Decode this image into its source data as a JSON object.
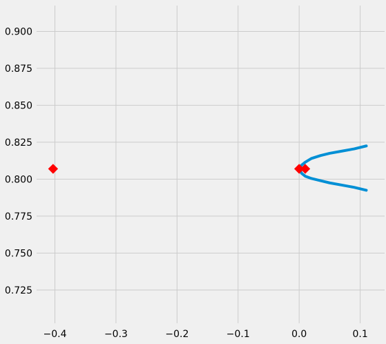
{
  "chart_data": {
    "type": "scatter",
    "title": "",
    "xlabel": "",
    "ylabel": "",
    "xlim": [
      -0.43,
      0.14
    ],
    "ylim": [
      0.7025,
      0.9175
    ],
    "grid": true,
    "xticks": [
      -0.4,
      -0.3,
      -0.2,
      -0.1,
      0.0,
      0.1
    ],
    "xtick_labels": [
      "−0.4",
      "−0.3",
      "−0.2",
      "−0.1",
      "0.0",
      "0.1"
    ],
    "yticks": [
      0.725,
      0.75,
      0.775,
      0.8,
      0.825,
      0.85,
      0.875,
      0.9
    ],
    "ytick_labels": [
      "0.725",
      "0.750",
      "0.775",
      "0.800",
      "0.825",
      "0.850",
      "0.875",
      "0.900"
    ],
    "series": [
      {
        "kind": "line",
        "color": "#008fd5",
        "x": [
          0.11,
          0.09,
          0.07,
          0.05,
          0.035,
          0.02,
          0.01,
          0.004,
          0.0,
          0.004,
          0.01,
          0.02,
          0.035,
          0.05,
          0.07,
          0.09,
          0.11
        ],
        "y": [
          0.8225,
          0.8205,
          0.819,
          0.8175,
          0.816,
          0.814,
          0.8115,
          0.8095,
          0.8075,
          0.804,
          0.802,
          0.8005,
          0.799,
          0.7975,
          0.796,
          0.7945,
          0.7925
        ]
      },
      {
        "kind": "markers",
        "marker": "diamond",
        "color": "#ff0000",
        "x": [
          -0.403,
          0.0,
          0.01
        ],
        "y": [
          0.807,
          0.807,
          0.807
        ]
      }
    ]
  }
}
